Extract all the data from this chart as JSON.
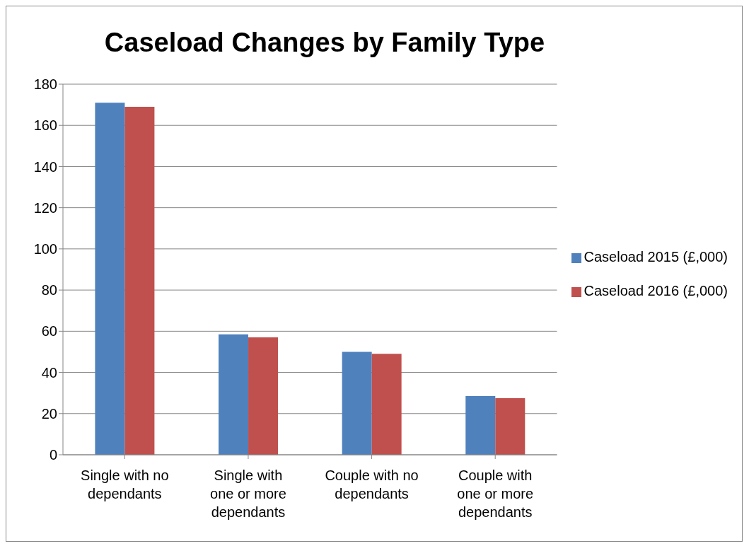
{
  "chart_data": {
    "type": "bar",
    "title": "Caseload Changes by Family Type",
    "categories": [
      "Single with no dependants",
      "Single with one or more dependants",
      "Couple with no dependants",
      "Couple with one or more dependants"
    ],
    "series": [
      {
        "name": "Caseload 2015 (£,000)",
        "color": "#4f81bd",
        "values": [
          171,
          58.5,
          50,
          28.5
        ]
      },
      {
        "name": "Caseload 2016 (£,000)",
        "color": "#c0504d",
        "values": [
          169,
          57,
          49,
          27.5
        ]
      }
    ],
    "ylim": [
      0,
      180
    ],
    "yticks": [
      0,
      20,
      40,
      60,
      80,
      100,
      120,
      140,
      160,
      180
    ],
    "grid": "y",
    "legend": "right"
  }
}
